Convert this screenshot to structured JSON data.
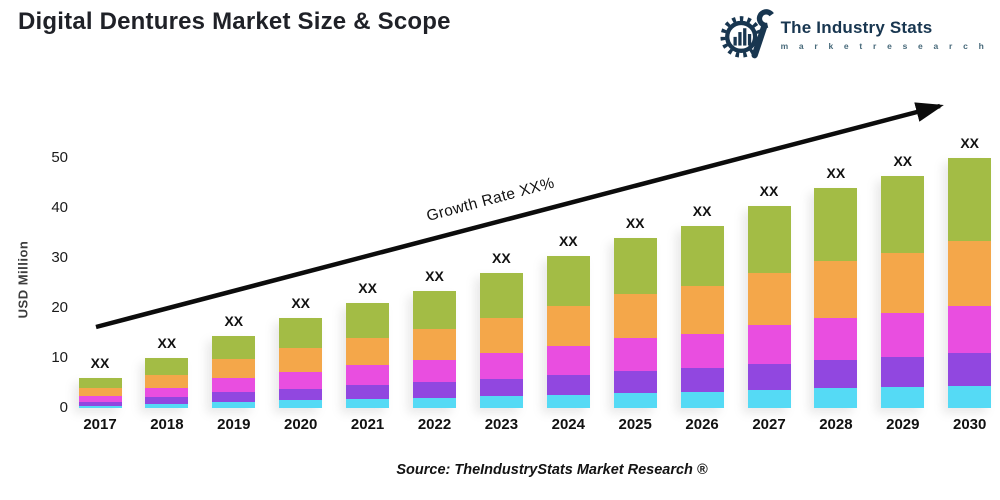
{
  "title": "Digital Dentures Market Size & Scope",
  "logo": {
    "name": "The Industry Stats",
    "tagline": "m a r k e t   r e s e a r c h",
    "color": "#183650"
  },
  "chart_data": {
    "type": "bar",
    "stacked": true,
    "title": "Digital Dentures Market Size & Scope",
    "xlabel": "",
    "ylabel": "USD Million",
    "ylim": [
      0,
      55
    ],
    "yticks": [
      0,
      10,
      20,
      30,
      40,
      50
    ],
    "grid": false,
    "legend": "none",
    "categories": [
      2017,
      2018,
      2019,
      2020,
      2021,
      2022,
      2023,
      2024,
      2025,
      2026,
      2027,
      2028,
      2029,
      2030
    ],
    "totals": [
      6.0,
      10.0,
      14.5,
      18.0,
      21.0,
      23.5,
      27.0,
      30.5,
      34.0,
      36.5,
      40.5,
      44.0,
      46.5,
      50.0
    ],
    "series": [
      {
        "id": "cyan",
        "name": "segment-1-bottom",
        "color": "#55daf5",
        "values": [
          0.5,
          0.9,
          1.3,
          1.6,
          1.9,
          2.1,
          2.4,
          2.7,
          3.1,
          3.3,
          3.6,
          4.0,
          4.2,
          4.5
        ]
      },
      {
        "id": "purple",
        "name": "segment-2",
        "color": "#9147e0",
        "values": [
          0.8,
          1.3,
          1.9,
          2.3,
          2.7,
          3.1,
          3.5,
          4.0,
          4.4,
          4.7,
          5.3,
          5.7,
          6.0,
          6.5
        ]
      },
      {
        "id": "magenta",
        "name": "segment-3",
        "color": "#e94ee0",
        "values": [
          1.1,
          1.9,
          2.8,
          3.4,
          4.0,
          4.5,
          5.1,
          5.8,
          6.5,
          6.9,
          7.7,
          8.4,
          8.8,
          9.5
        ]
      },
      {
        "id": "orange",
        "name": "segment-4",
        "color": "#f4a74a",
        "values": [
          1.6,
          2.6,
          3.8,
          4.7,
          5.5,
          6.1,
          7.0,
          7.9,
          8.8,
          9.5,
          10.5,
          11.4,
          12.1,
          13.0
        ]
      },
      {
        "id": "green",
        "name": "segment-5-top",
        "color": "#a3bc45",
        "values": [
          2.0,
          3.3,
          4.7,
          6.0,
          6.9,
          7.7,
          9.0,
          10.1,
          11.2,
          12.1,
          13.4,
          14.5,
          15.4,
          16.5
        ]
      }
    ],
    "bar_value_label": "XX",
    "growth_label": "Growth Rate XX%",
    "annotations": [
      "Growth Rate XX%"
    ]
  },
  "source": "Source: TheIndustryStats Market Research ®"
}
